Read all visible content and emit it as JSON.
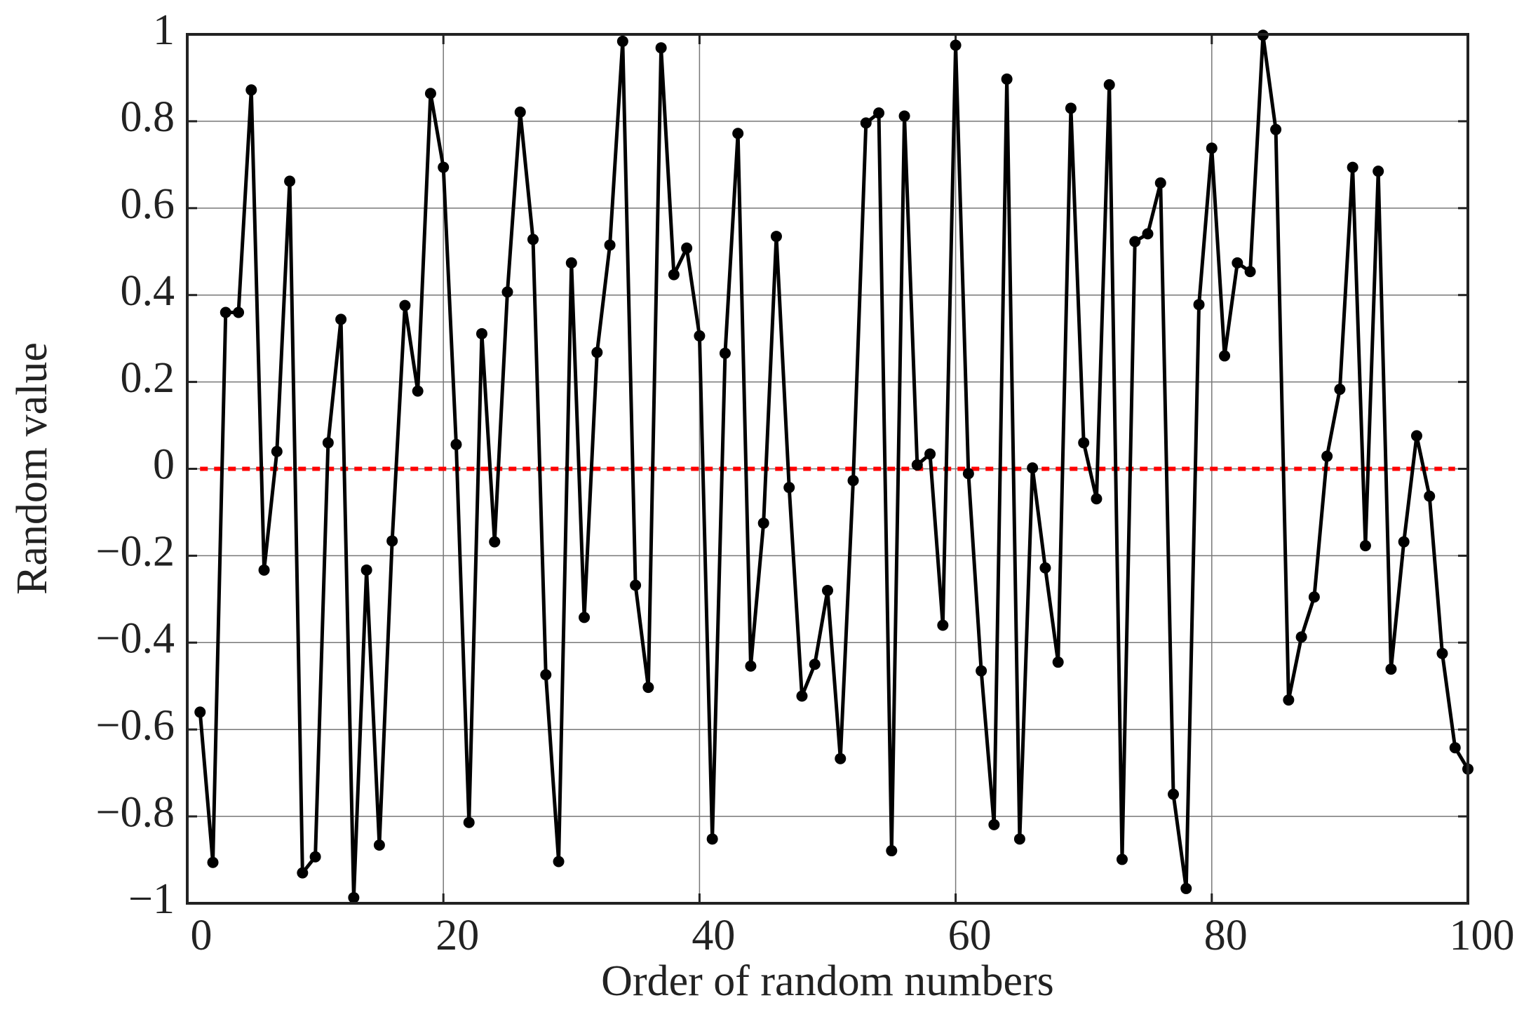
{
  "chart_data": {
    "type": "line",
    "x_label": "Order of random numbers",
    "y_label": "Random value",
    "x": [
      1,
      2,
      3,
      4,
      5,
      6,
      7,
      8,
      9,
      10,
      11,
      12,
      13,
      14,
      15,
      16,
      17,
      18,
      19,
      20,
      21,
      22,
      23,
      24,
      25,
      26,
      27,
      28,
      29,
      30,
      31,
      32,
      33,
      34,
      35,
      36,
      37,
      38,
      39,
      40,
      41,
      42,
      43,
      44,
      45,
      46,
      47,
      48,
      49,
      50,
      51,
      52,
      53,
      54,
      55,
      56,
      57,
      58,
      59,
      60,
      61,
      62,
      63,
      64,
      65,
      66,
      67,
      68,
      69,
      70,
      71,
      72,
      73,
      74,
      75,
      76,
      77,
      78,
      79,
      80,
      81,
      82,
      83,
      84,
      85,
      86,
      87,
      88,
      89,
      90,
      91,
      92,
      93,
      94,
      95,
      96,
      97,
      98,
      99,
      100
    ],
    "series": [
      {
        "name": "Random value",
        "color": "#000000",
        "values": [
          -0.56,
          -0.906,
          0.36,
          0.36,
          0.872,
          -0.233,
          0.04,
          0.662,
          -0.93,
          -0.893,
          0.06,
          0.344,
          -0.987,
          -0.233,
          -0.866,
          -0.166,
          0.376,
          0.179,
          0.864,
          0.694,
          0.056,
          -0.814,
          0.311,
          -0.168,
          0.407,
          0.821,
          0.528,
          -0.474,
          -0.904,
          0.474,
          -0.342,
          0.268,
          0.515,
          0.984,
          -0.268,
          -0.503,
          0.969,
          0.447,
          0.508,
          0.306,
          -0.852,
          0.266,
          0.772,
          -0.454,
          -0.125,
          0.535,
          -0.043,
          -0.523,
          -0.45,
          -0.28,
          -0.667,
          -0.027,
          0.796,
          0.819,
          -0.879,
          0.812,
          0.009,
          0.034,
          -0.36,
          0.975,
          -0.011,
          -0.465,
          -0.819,
          0.897,
          -0.852,
          0.002,
          -0.228,
          -0.445,
          0.83,
          0.06,
          -0.069,
          0.884,
          -0.899,
          0.523,
          0.541,
          0.658,
          -0.749,
          -0.966,
          0.378,
          0.738,
          0.26,
          0.474,
          0.454,
          0.998,
          0.781,
          -0.532,
          -0.387,
          -0.295,
          0.029,
          0.183,
          0.694,
          -0.177,
          0.685,
          -0.461,
          -0.168,
          0.076,
          -0.063,
          -0.425,
          -0.642,
          -0.691
        ]
      }
    ],
    "reference_line": {
      "value": 0,
      "color": "#ff0000"
    },
    "xlim": [
      0,
      100
    ],
    "xticks": [
      0,
      20,
      40,
      60,
      80,
      100
    ],
    "ylim": [
      -1,
      1
    ],
    "yticks": [
      {
        "value": -1,
        "label": "−1"
      },
      {
        "value": -0.8,
        "label": "−0.8"
      },
      {
        "value": -0.6,
        "label": "−0.6"
      },
      {
        "value": -0.4,
        "label": "−0.4"
      },
      {
        "value": -0.2,
        "label": "−0.2"
      },
      0,
      0.2,
      0.4,
      0.6,
      0.8,
      1
    ],
    "grid": true
  }
}
